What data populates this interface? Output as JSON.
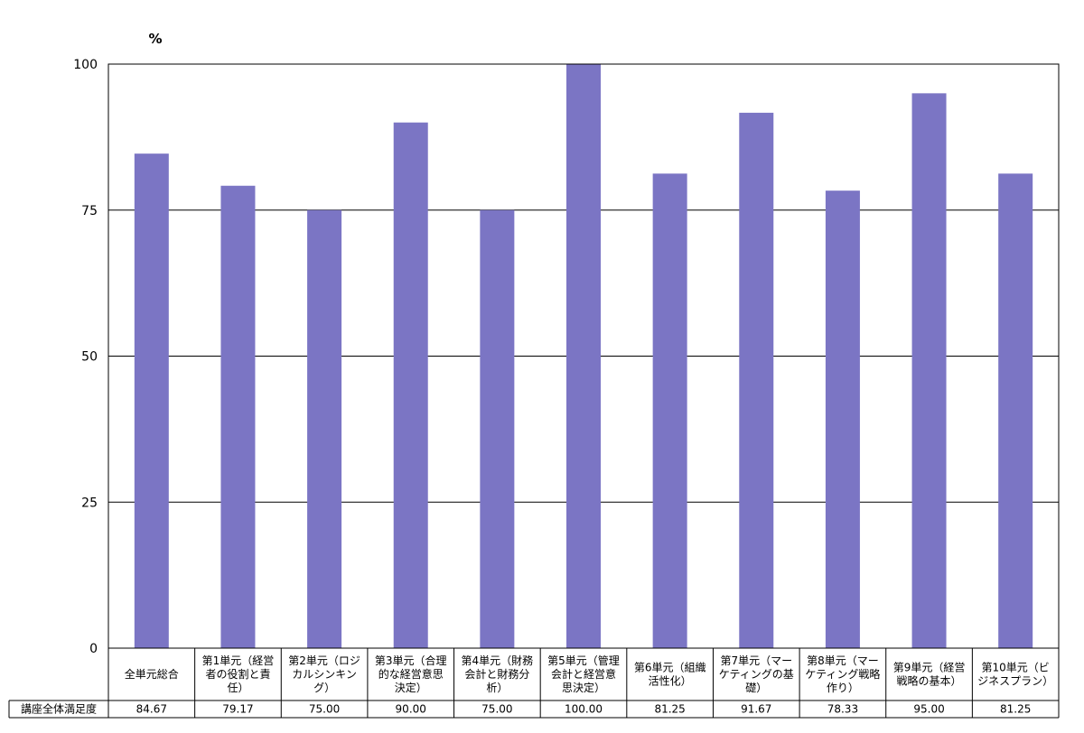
{
  "chart_data": {
    "type": "bar",
    "unit_label": "%",
    "ylim": [
      0,
      100
    ],
    "yticks": [
      0,
      25,
      50,
      75,
      100
    ],
    "grid": true,
    "bar_color": "#7b75c4",
    "categories": [
      [
        "全単元総合"
      ],
      [
        "第1単元（経営",
        "者の役割と責",
        "任）"
      ],
      [
        "第2単元（ロジ",
        "カルシンキン",
        "グ）"
      ],
      [
        "第3単元（合理",
        "的な経営意思",
        "決定）"
      ],
      [
        "第4単元（財務",
        "会計と財務分",
        "析）"
      ],
      [
        "第5単元（管理",
        "会計と経営意",
        "思決定）"
      ],
      [
        "第6単元（組織",
        "活性化）"
      ],
      [
        "第7単元（マー",
        "ケティングの基",
        "礎）"
      ],
      [
        "第8単元（マー",
        "ケティング戦略",
        "作り）"
      ],
      [
        "第9単元（経営",
        "戦略の基本）"
      ],
      [
        "第10単元（ビ",
        "ジネスプラン）"
      ]
    ],
    "series": [
      {
        "name": "講座全体満足度",
        "values": [
          84.67,
          79.17,
          75.0,
          90.0,
          75.0,
          100.0,
          81.25,
          91.67,
          78.33,
          95.0,
          81.25
        ],
        "display_values": [
          "84.67",
          "79.17",
          "75.00",
          "90.00",
          "75.00",
          "100.00",
          "81.25",
          "91.67",
          "78.33",
          "95.00",
          "81.25"
        ]
      }
    ]
  }
}
